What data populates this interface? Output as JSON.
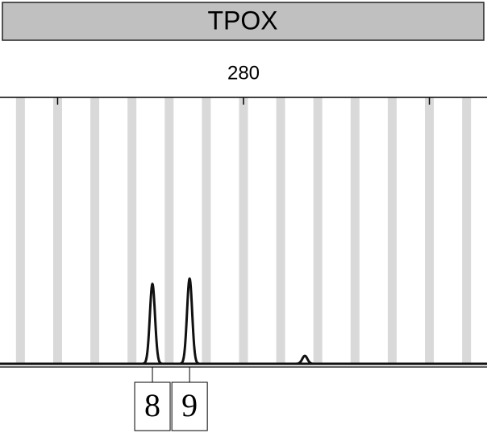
{
  "chart_data": {
    "type": "electropherogram",
    "title": "TPOX",
    "xlim": [
      266.9,
      293.1
    ],
    "xticks": [
      280
    ],
    "minor_xticks": [
      270,
      290
    ],
    "ylim": [
      0,
      100
    ],
    "bins": [
      268,
      270,
      272,
      274,
      276,
      278,
      280,
      282,
      284,
      286,
      288,
      290,
      292
    ],
    "peaks": {
      "x": [
        275.1,
        277.1,
        283.3
      ],
      "values": [
        30,
        32,
        3
      ],
      "labels": [
        "8",
        "9",
        null
      ]
    }
  }
}
